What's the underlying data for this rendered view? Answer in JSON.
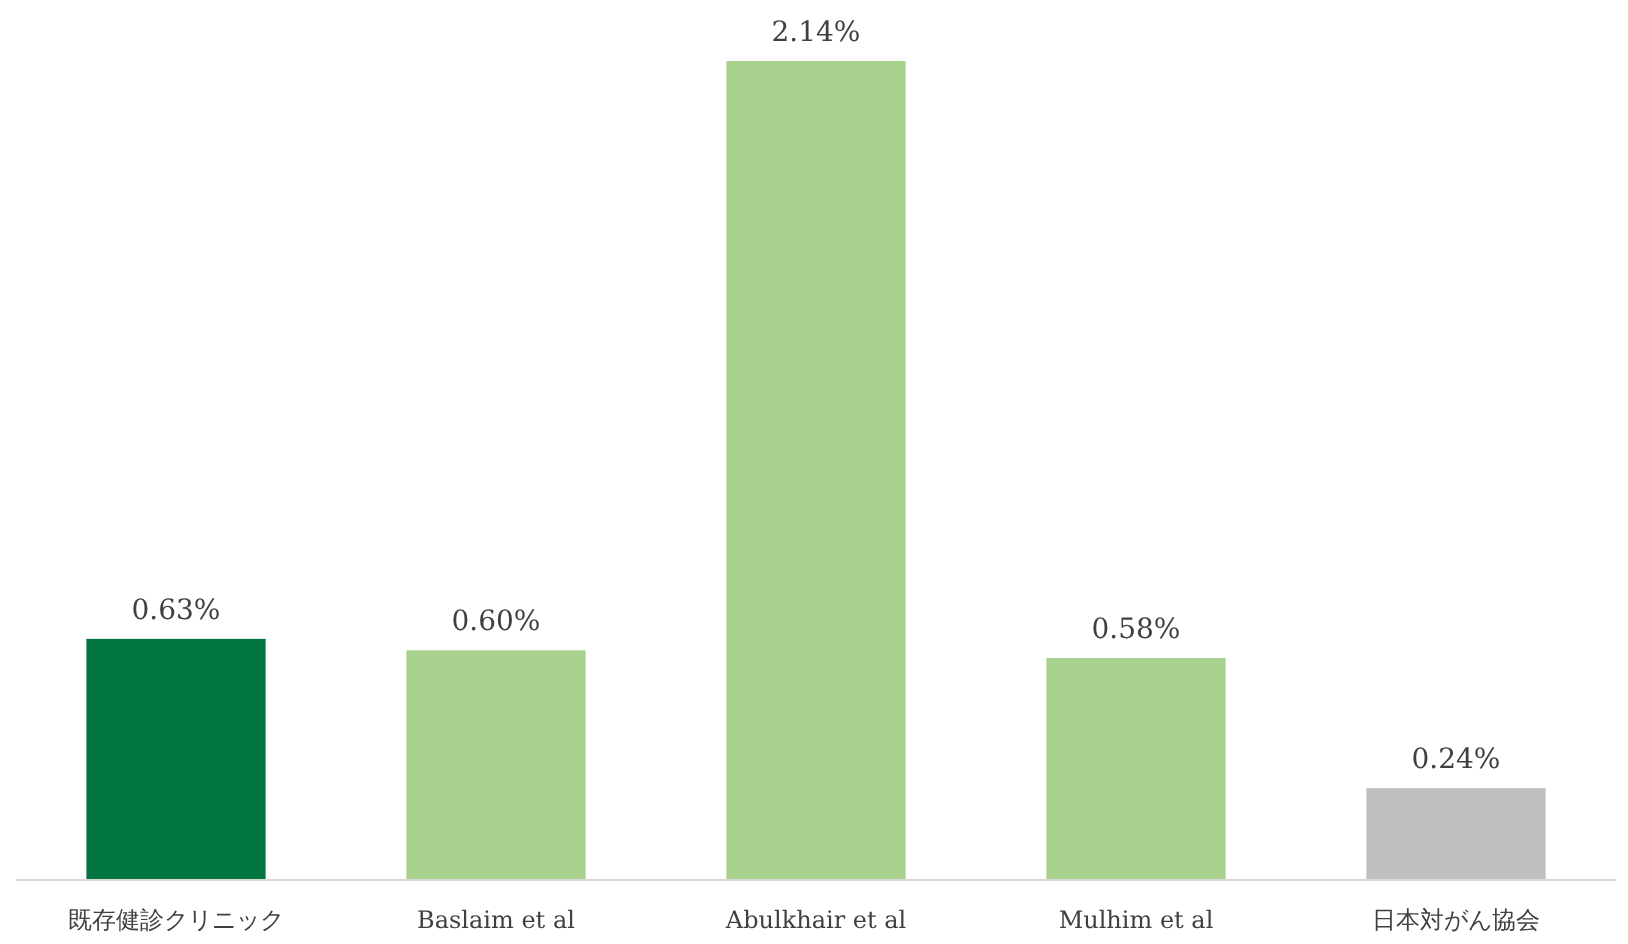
{
  "chart_data": {
    "type": "bar",
    "categories": [
      "既存健診クリニック",
      "Baslaim et al",
      "Abulkhair et al",
      "Mulhim et al",
      "日本対がん協会"
    ],
    "values": [
      0.63,
      0.6,
      2.14,
      0.58,
      0.24
    ],
    "colors": [
      "#00753f",
      "#a9d18e",
      "#a9d18e",
      "#a9d18e",
      "#bfbfbf"
    ],
    "value_labels": [
      "0.63%",
      "0.60%",
      "2.14%",
      "0.58%",
      "0.24%"
    ],
    "tick_labels": "x"
  }
}
